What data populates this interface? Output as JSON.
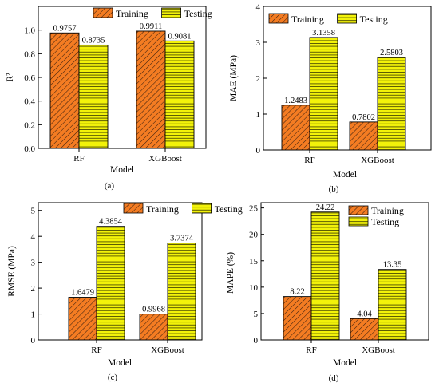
{
  "colors": {
    "training_fill": "#f47c22",
    "training_hatch": "#3a2010",
    "testing_fill": "#f2f20a",
    "testing_hatch": "#3a3a00",
    "axis": "#000000"
  },
  "chart_data": [
    {
      "type": "bar",
      "label": "(a)",
      "categories": [
        "RF",
        "XGBoost"
      ],
      "xlabel": "Model",
      "ylabel": "R²",
      "ylim": [
        0,
        1.2
      ],
      "yticks": [
        0.0,
        0.2,
        0.4,
        0.6,
        0.8,
        1.0
      ],
      "tick_format": "0.0",
      "legend": "top-center",
      "series": [
        {
          "name": "Training",
          "values": [
            0.9757,
            0.9911
          ],
          "labels": [
            "0.9757",
            "0.9911"
          ]
        },
        {
          "name": "Testing",
          "values": [
            0.8735,
            0.9081
          ],
          "labels": [
            "0.8735",
            "0.9081"
          ]
        }
      ]
    },
    {
      "type": "bar",
      "label": "(b)",
      "categories": [
        "RF",
        "XGBoost"
      ],
      "xlabel": "Model",
      "ylabel": "MAE (MPa)",
      "ylim": [
        0,
        4
      ],
      "yticks": [
        0,
        1,
        2,
        3,
        4
      ],
      "tick_format": "0",
      "legend": "top-left",
      "series": [
        {
          "name": "Training",
          "values": [
            1.2483,
            0.7802
          ],
          "labels": [
            "1.2483",
            "0.7802"
          ]
        },
        {
          "name": "Testing",
          "values": [
            3.1358,
            2.5803
          ],
          "labels": [
            "3.1358",
            "2.5803"
          ]
        }
      ]
    },
    {
      "type": "bar",
      "label": "(c)",
      "categories": [
        "RF",
        "XGBoost"
      ],
      "xlabel": "Model",
      "ylabel": "RMSE (MPa)",
      "ylim": [
        0,
        5.3
      ],
      "yticks": [
        0,
        1,
        2,
        3,
        4,
        5
      ],
      "tick_format": "0",
      "legend": "top-right",
      "series": [
        {
          "name": "Training",
          "values": [
            1.6479,
            0.9968
          ],
          "labels": [
            "1.6479",
            "0.9968"
          ]
        },
        {
          "name": "Testing",
          "values": [
            4.3854,
            3.7374
          ],
          "labels": [
            "4.3854",
            "3.7374"
          ]
        }
      ]
    },
    {
      "type": "bar",
      "label": "(d)",
      "categories": [
        "RF",
        "XGBoost"
      ],
      "xlabel": "Model",
      "ylabel": "MAPE (%)",
      "ylim": [
        0,
        26
      ],
      "yticks": [
        0,
        5,
        10,
        15,
        20,
        25
      ],
      "tick_format": "0",
      "legend": "top-right",
      "series": [
        {
          "name": "Training",
          "values": [
            8.22,
            4.04
          ],
          "labels": [
            "8.22",
            "4.04"
          ]
        },
        {
          "name": "Testing",
          "values": [
            24.22,
            13.35
          ],
          "labels": [
            "24.22",
            "13.35"
          ]
        }
      ]
    }
  ]
}
